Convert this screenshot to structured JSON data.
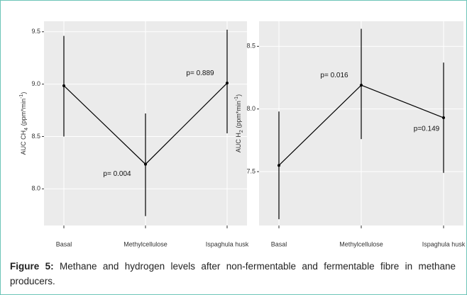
{
  "chart_data": [
    {
      "type": "errorline",
      "ylabel": [
        "AUC  CH",
        "4",
        " (ppm*min",
        "-1",
        ")"
      ],
      "categories": [
        "Basal",
        "Methylcellulose",
        "Ispaghula husk"
      ],
      "values": [
        8.985,
        8.235,
        9.01
      ],
      "lower": [
        8.5,
        7.74,
        8.53
      ],
      "upper": [
        9.46,
        8.72,
        9.52
      ],
      "annotations": [
        null,
        "p= 0.004",
        "p= 0.889"
      ],
      "color": "#000000",
      "ylim": [
        7.65,
        9.6
      ],
      "yticks": [
        {
          "value": 8,
          "label": "8.0"
        },
        8.5,
        {
          "value": 9,
          "label": "9.0"
        },
        9.5
      ],
      "grid": true
    },
    {
      "type": "errorline",
      "ylabel": [
        "AUC  H",
        "2",
        " (ppm*min",
        "-1",
        ")"
      ],
      "categories": [
        "Basal",
        "Methylcellulose",
        "Ispaghula husk"
      ],
      "values": [
        7.55,
        8.19,
        7.93
      ],
      "lower": [
        7.12,
        7.76,
        7.49
      ],
      "upper": [
        7.98,
        8.64,
        8.37
      ],
      "annotations": [
        null,
        "p= 0.016",
        "p=0.149"
      ],
      "color": "#000000",
      "ylim": [
        7.07,
        8.7
      ],
      "yticks": [
        7.5,
        {
          "value": 8,
          "label": "8.0"
        },
        8.5
      ],
      "grid": true
    }
  ],
  "caption": {
    "label": "Figure 5:",
    "text": "Methane and hydrogen levels after non-fermentable and fermentable fibre in methane producers."
  }
}
